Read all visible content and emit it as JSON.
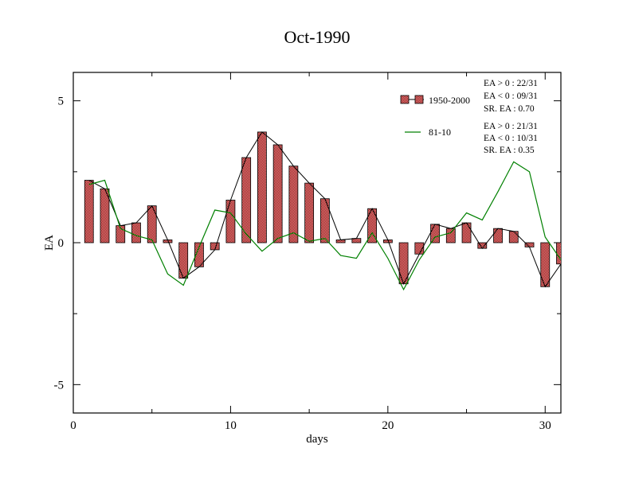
{
  "chart_data": {
    "type": "bar",
    "title": "Oct-1990",
    "xlabel": "days",
    "ylabel": "EA",
    "xlim": [
      0,
      31
    ],
    "ylim": [
      -6,
      6
    ],
    "x_ticks": [
      0,
      10,
      20,
      30
    ],
    "y_ticks": [
      -5,
      0,
      5
    ],
    "x_tick_labels": [
      "0",
      "10",
      "20",
      "30"
    ],
    "y_tick_labels": [
      "-5",
      "0",
      "5"
    ],
    "grid": false,
    "legend_position": "top-right",
    "series": [
      {
        "name": "1950-2000",
        "style": "bar-with-line",
        "fill": "#f08080",
        "x": [
          1,
          2,
          3,
          4,
          5,
          6,
          7,
          8,
          9,
          10,
          11,
          12,
          13,
          14,
          15,
          16,
          17,
          18,
          19,
          20,
          21,
          22,
          23,
          24,
          25,
          26,
          27,
          28,
          29,
          30,
          31
        ],
        "values": [
          2.2,
          1.9,
          0.6,
          0.7,
          1.3,
          0.1,
          -1.25,
          -0.85,
          -0.25,
          1.5,
          3.0,
          3.9,
          3.45,
          2.7,
          2.1,
          1.55,
          0.1,
          0.15,
          1.2,
          0.1,
          -1.45,
          -0.4,
          0.65,
          0.5,
          0.7,
          -0.2,
          0.5,
          0.4,
          -0.15,
          -1.55,
          -0.75
        ]
      },
      {
        "name": "81-10",
        "style": "line",
        "color": "#008000",
        "x": [
          1,
          2,
          3,
          4,
          5,
          6,
          7,
          8,
          9,
          10,
          11,
          12,
          13,
          14,
          15,
          16,
          17,
          18,
          19,
          20,
          21,
          22,
          23,
          24,
          25,
          26,
          27,
          28,
          29,
          30,
          31
        ],
        "values": [
          2.05,
          2.2,
          0.5,
          0.25,
          0.1,
          -1.1,
          -1.5,
          -0.15,
          1.15,
          1.05,
          0.3,
          -0.3,
          0.15,
          0.35,
          0.05,
          0.15,
          -0.45,
          -0.55,
          0.35,
          -0.55,
          -1.65,
          -0.6,
          0.2,
          0.35,
          1.05,
          0.8,
          1.8,
          2.85,
          2.5,
          0.2,
          -0.6
        ]
      }
    ],
    "annotations": {
      "group1": [
        "EA > 0 : 22/31",
        "EA < 0 : 09/31",
        "SR. EA :  0.70"
      ],
      "group2": [
        "EA > 0 : 21/31",
        "EA < 0 : 10/31",
        "SR. EA :  0.35"
      ]
    }
  }
}
